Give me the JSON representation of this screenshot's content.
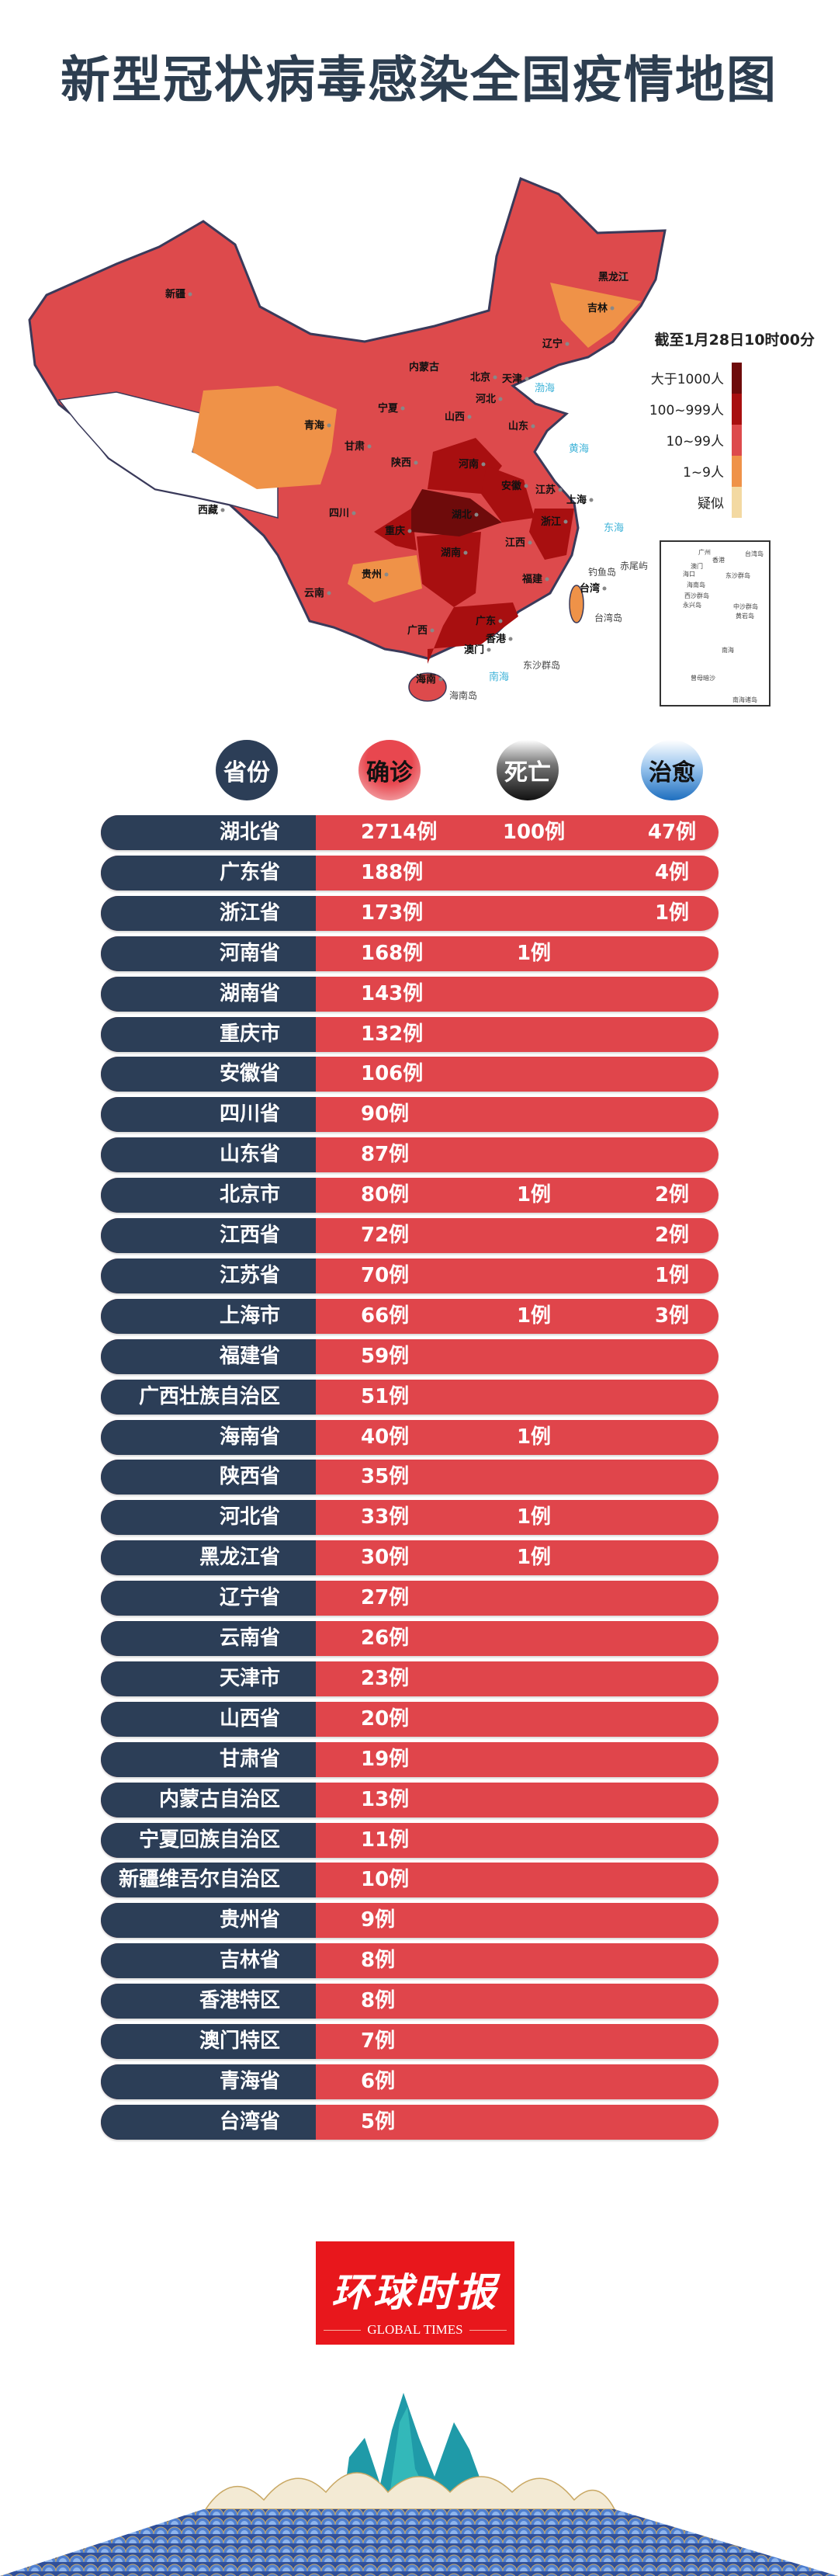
{
  "title": "新型冠状病毒感染全国疫情地图",
  "map": {
    "timestamp": "截至1月28日10时00分",
    "legend": [
      {
        "label": "大于1000人",
        "color": "#6e0b0b"
      },
      {
        "label": "100~999人",
        "color": "#a80f10"
      },
      {
        "label": "10~99人",
        "color": "#dd4a4c"
      },
      {
        "label": "1~9人",
        "color": "#ef9248"
      },
      {
        "label": "疑似",
        "color": "#f3d9a2"
      }
    ],
    "province_labels": [
      "新疆",
      "黑龙江",
      "吉林",
      "辽宁",
      "内蒙古",
      "北京",
      "天津",
      "河北",
      "宁夏",
      "山西",
      "山东",
      "青海",
      "甘肃",
      "河南",
      "陕西",
      "安徽",
      "江苏",
      "上海",
      "西藏",
      "四川",
      "湖北",
      "浙江",
      "重庆",
      "江西",
      "湖南",
      "贵州",
      "福建",
      "台湾",
      "云南",
      "广西",
      "广东",
      "香港",
      "澳门",
      "海南"
    ],
    "sea_labels": [
      "渤海",
      "黄海",
      "东海",
      "南海"
    ],
    "island_labels": [
      "钓鱼岛",
      "赤尾屿",
      "台湾岛",
      "东沙群岛",
      "海南岛"
    ],
    "inset": {
      "labels": [
        "广州",
        "香港",
        "澳门",
        "台湾岛",
        "海口",
        "海南岛",
        "东沙群岛",
        "西沙群岛",
        "永兴岛",
        "中沙群岛",
        "黄岩岛",
        "曾母暗沙",
        "南海"
      ],
      "caption": "南海诸岛"
    }
  },
  "table": {
    "headers": {
      "province": "省份",
      "confirmed": "确诊",
      "deaths": "死亡",
      "cured": "治愈"
    },
    "colors": {
      "province": "#2c3e57",
      "values": "#e0454b"
    },
    "rows": [
      {
        "province": "湖北省",
        "confirmed": "2714例",
        "deaths": "100例",
        "cured": "47例"
      },
      {
        "province": "广东省",
        "confirmed": "188例",
        "deaths": "",
        "cured": "4例"
      },
      {
        "province": "浙江省",
        "confirmed": "173例",
        "deaths": "",
        "cured": "1例"
      },
      {
        "province": "河南省",
        "confirmed": "168例",
        "deaths": "1例",
        "cured": ""
      },
      {
        "province": "湖南省",
        "confirmed": "143例",
        "deaths": "",
        "cured": ""
      },
      {
        "province": "重庆市",
        "confirmed": "132例",
        "deaths": "",
        "cured": ""
      },
      {
        "province": "安徽省",
        "confirmed": "106例",
        "deaths": "",
        "cured": ""
      },
      {
        "province": "四川省",
        "confirmed": "90例",
        "deaths": "",
        "cured": ""
      },
      {
        "province": "山东省",
        "confirmed": "87例",
        "deaths": "",
        "cured": ""
      },
      {
        "province": "北京市",
        "confirmed": "80例",
        "deaths": "1例",
        "cured": "2例"
      },
      {
        "province": "江西省",
        "confirmed": "72例",
        "deaths": "",
        "cured": "2例"
      },
      {
        "province": "江苏省",
        "confirmed": "70例",
        "deaths": "",
        "cured": "1例"
      },
      {
        "province": "上海市",
        "confirmed": "66例",
        "deaths": "1例",
        "cured": "3例"
      },
      {
        "province": "福建省",
        "confirmed": "59例",
        "deaths": "",
        "cured": ""
      },
      {
        "province": "广西壮族自治区",
        "confirmed": "51例",
        "deaths": "",
        "cured": ""
      },
      {
        "province": "海南省",
        "confirmed": "40例",
        "deaths": "1例",
        "cured": ""
      },
      {
        "province": "陕西省",
        "confirmed": "35例",
        "deaths": "",
        "cured": ""
      },
      {
        "province": "河北省",
        "confirmed": "33例",
        "deaths": "1例",
        "cured": ""
      },
      {
        "province": "黑龙江省",
        "confirmed": "30例",
        "deaths": "1例",
        "cured": ""
      },
      {
        "province": "辽宁省",
        "confirmed": "27例",
        "deaths": "",
        "cured": ""
      },
      {
        "province": "云南省",
        "confirmed": "26例",
        "deaths": "",
        "cured": ""
      },
      {
        "province": "天津市",
        "confirmed": "23例",
        "deaths": "",
        "cured": ""
      },
      {
        "province": "山西省",
        "confirmed": "20例",
        "deaths": "",
        "cured": ""
      },
      {
        "province": "甘肃省",
        "confirmed": "19例",
        "deaths": "",
        "cured": ""
      },
      {
        "province": "内蒙古自治区",
        "confirmed": "13例",
        "deaths": "",
        "cured": ""
      },
      {
        "province": "宁夏回族自治区",
        "confirmed": "11例",
        "deaths": "",
        "cured": ""
      },
      {
        "province": "新疆维吾尔自治区",
        "confirmed": "10例",
        "deaths": "",
        "cured": ""
      },
      {
        "province": "贵州省",
        "confirmed": "9例",
        "deaths": "",
        "cured": ""
      },
      {
        "province": "吉林省",
        "confirmed": "8例",
        "deaths": "",
        "cured": ""
      },
      {
        "province": "香港特区",
        "confirmed": "8例",
        "deaths": "",
        "cured": ""
      },
      {
        "province": "澳门特区",
        "confirmed": "7例",
        "deaths": "",
        "cured": ""
      },
      {
        "province": "青海省",
        "confirmed": "6例",
        "deaths": "",
        "cured": ""
      },
      {
        "province": "台湾省",
        "confirmed": "5例",
        "deaths": "",
        "cured": ""
      }
    ]
  },
  "logo": {
    "cn": "环球时报",
    "en": "GLOBAL TIMES",
    "color": "#e8171c"
  }
}
